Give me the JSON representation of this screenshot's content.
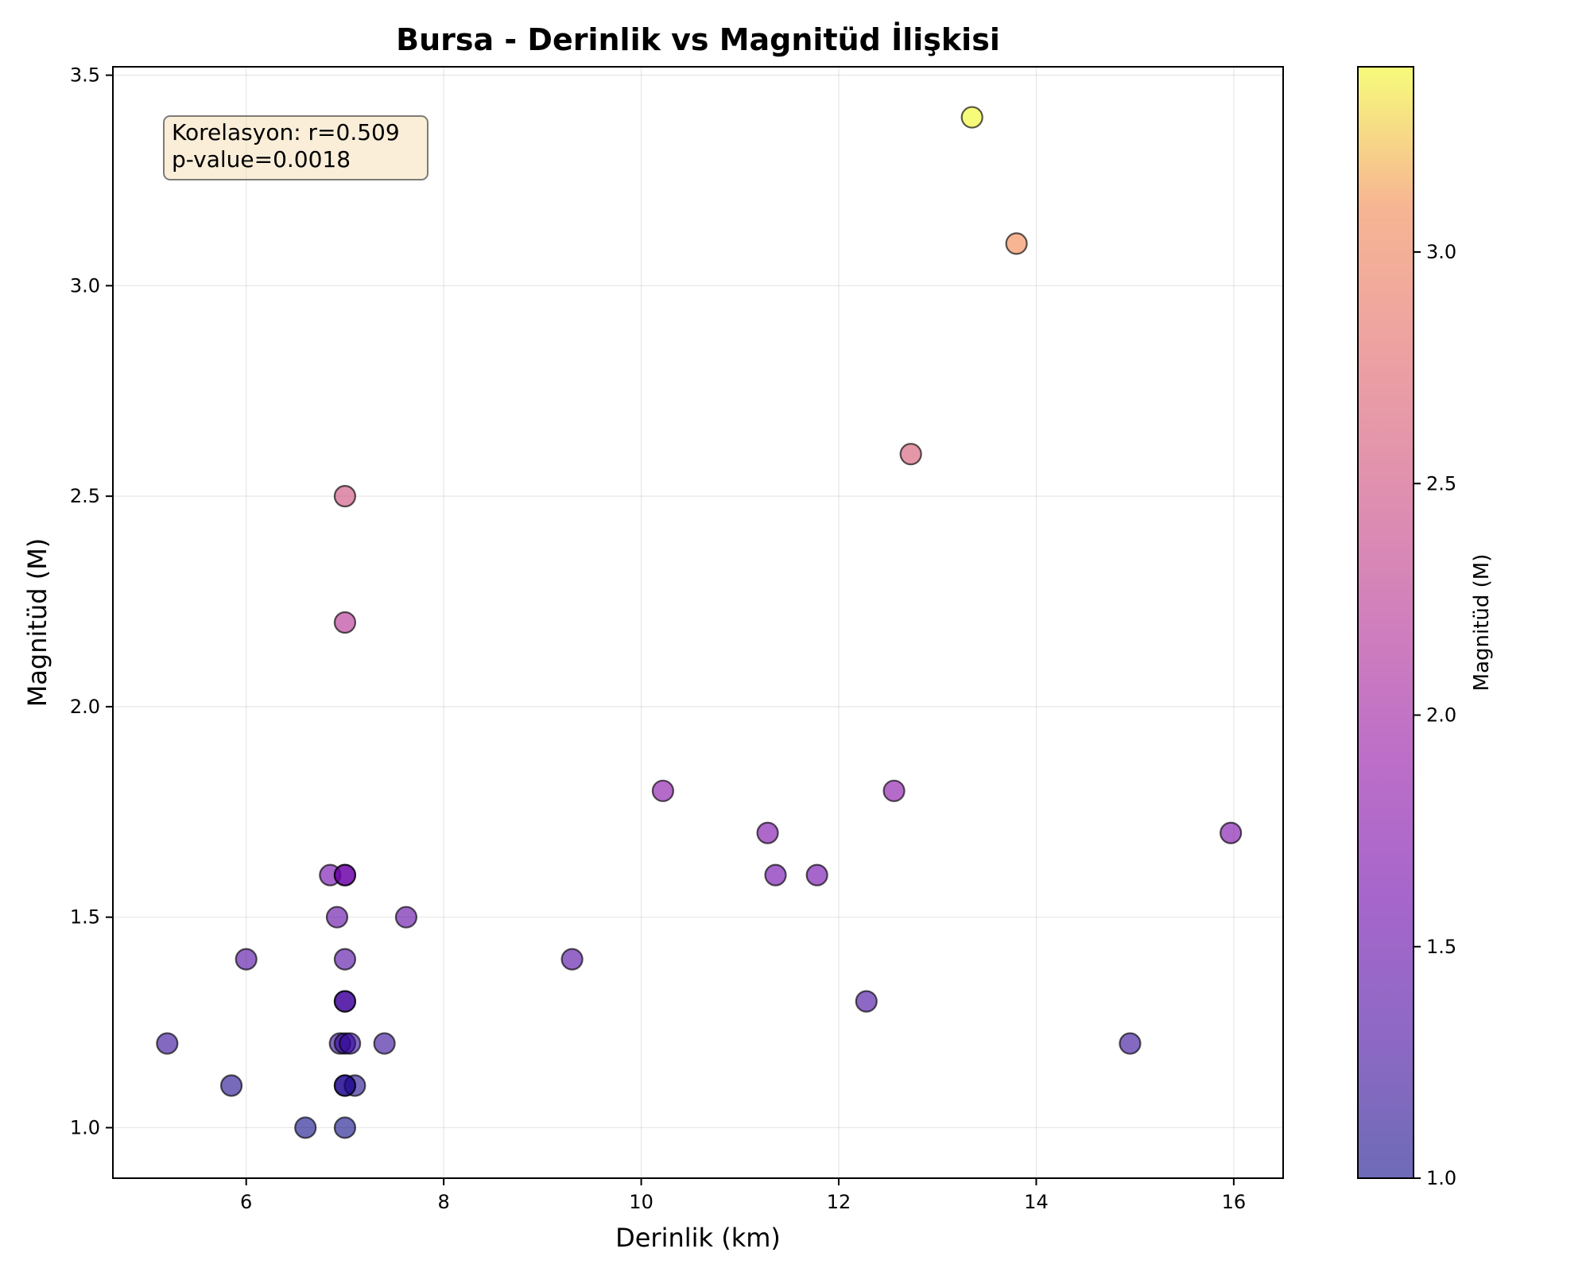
{
  "chart_data": {
    "type": "scatter",
    "title": "Bursa - Derinlik vs Magnitüd İlişkisi",
    "xlabel": "Derinlik (km)",
    "ylabel": "Magnitüd (M)",
    "xlim": [
      4.65,
      16.5
    ],
    "ylim": [
      0.88,
      3.52
    ],
    "xticks": [
      6,
      8,
      10,
      12,
      14,
      16
    ],
    "yticks": [
      1.0,
      1.5,
      2.0,
      2.5,
      3.0,
      3.5
    ],
    "grid": true,
    "colormap": "plasma",
    "marker_alpha": 0.6,
    "colorbar": {
      "label": "Magnitüd (M)",
      "range": [
        1.0,
        3.4
      ],
      "ticks": [
        1.0,
        1.5,
        2.0,
        2.5,
        3.0
      ]
    },
    "annotation": {
      "lines": [
        "Korelasyon: r=0.509",
        "p-value=0.0018"
      ],
      "position": "top-left",
      "background": "#f5deb3"
    },
    "points": [
      {
        "x": 5.2,
        "y": 1.2
      },
      {
        "x": 5.85,
        "y": 1.1
      },
      {
        "x": 6.0,
        "y": 1.4
      },
      {
        "x": 6.6,
        "y": 1.0
      },
      {
        "x": 6.85,
        "y": 1.6
      },
      {
        "x": 6.92,
        "y": 1.5
      },
      {
        "x": 6.95,
        "y": 1.2
      },
      {
        "x": 7.0,
        "y": 1.2
      },
      {
        "x": 7.05,
        "y": 1.2
      },
      {
        "x": 7.0,
        "y": 1.1
      },
      {
        "x": 7.1,
        "y": 1.1
      },
      {
        "x": 7.0,
        "y": 1.0
      },
      {
        "x": 7.0,
        "y": 1.3
      },
      {
        "x": 7.0,
        "y": 1.3
      },
      {
        "x": 7.0,
        "y": 1.4
      },
      {
        "x": 7.0,
        "y": 1.6
      },
      {
        "x": 7.0,
        "y": 1.6
      },
      {
        "x": 7.0,
        "y": 2.2
      },
      {
        "x": 7.0,
        "y": 2.5
      },
      {
        "x": 7.0,
        "y": 1.1
      },
      {
        "x": 7.4,
        "y": 1.2
      },
      {
        "x": 7.62,
        "y": 1.5
      },
      {
        "x": 9.3,
        "y": 1.4
      },
      {
        "x": 10.22,
        "y": 1.8
      },
      {
        "x": 11.28,
        "y": 1.7
      },
      {
        "x": 11.36,
        "y": 1.6
      },
      {
        "x": 11.78,
        "y": 1.6
      },
      {
        "x": 12.28,
        "y": 1.3
      },
      {
        "x": 12.56,
        "y": 1.8
      },
      {
        "x": 12.73,
        "y": 2.6
      },
      {
        "x": 13.35,
        "y": 3.4
      },
      {
        "x": 13.8,
        "y": 3.1
      },
      {
        "x": 14.95,
        "y": 1.2
      },
      {
        "x": 15.97,
        "y": 1.7
      }
    ]
  }
}
